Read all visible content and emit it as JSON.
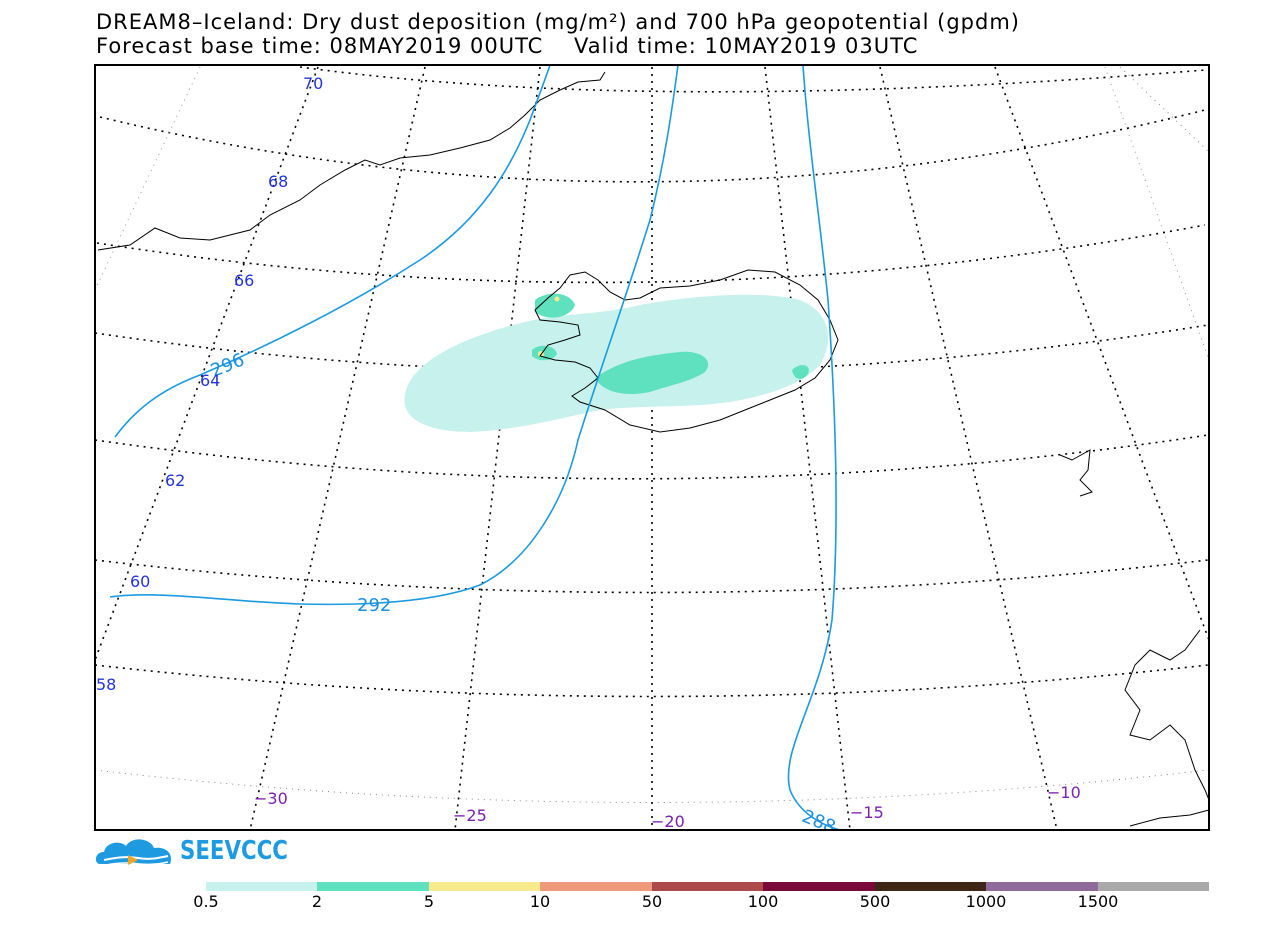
{
  "title_line1": "DREAM8–Iceland: Dry dust deposition (mg/m²) and 700 hPa geopotential (gpdm)",
  "title_line2": "Forecast base time: 08MAY2019 00UTC    Valid time: 10MAY2019 03UTC",
  "latitude_labels": [
    "70",
    "68",
    "66",
    "64",
    "62",
    "60",
    "58"
  ],
  "longitude_labels": [
    "−30",
    "−25",
    "−20",
    "−15",
    "−10"
  ],
  "contour_labels": [
    "296",
    "292",
    "288"
  ],
  "logo_text": "SEEVCCC",
  "legend": {
    "ticks": [
      "0.5",
      "2",
      "5",
      "10",
      "50",
      "100",
      "500",
      "1000",
      "1500"
    ],
    "colors": [
      "#c6f1ec",
      "#5fe0bf",
      "#f7ea8c",
      "#ef9a7c",
      "#ad4b4b",
      "#7a0a3a",
      "#3f2716",
      "#8e6b9a",
      "#a9a9a9"
    ]
  },
  "contour_color": "#1b9ae0"
}
